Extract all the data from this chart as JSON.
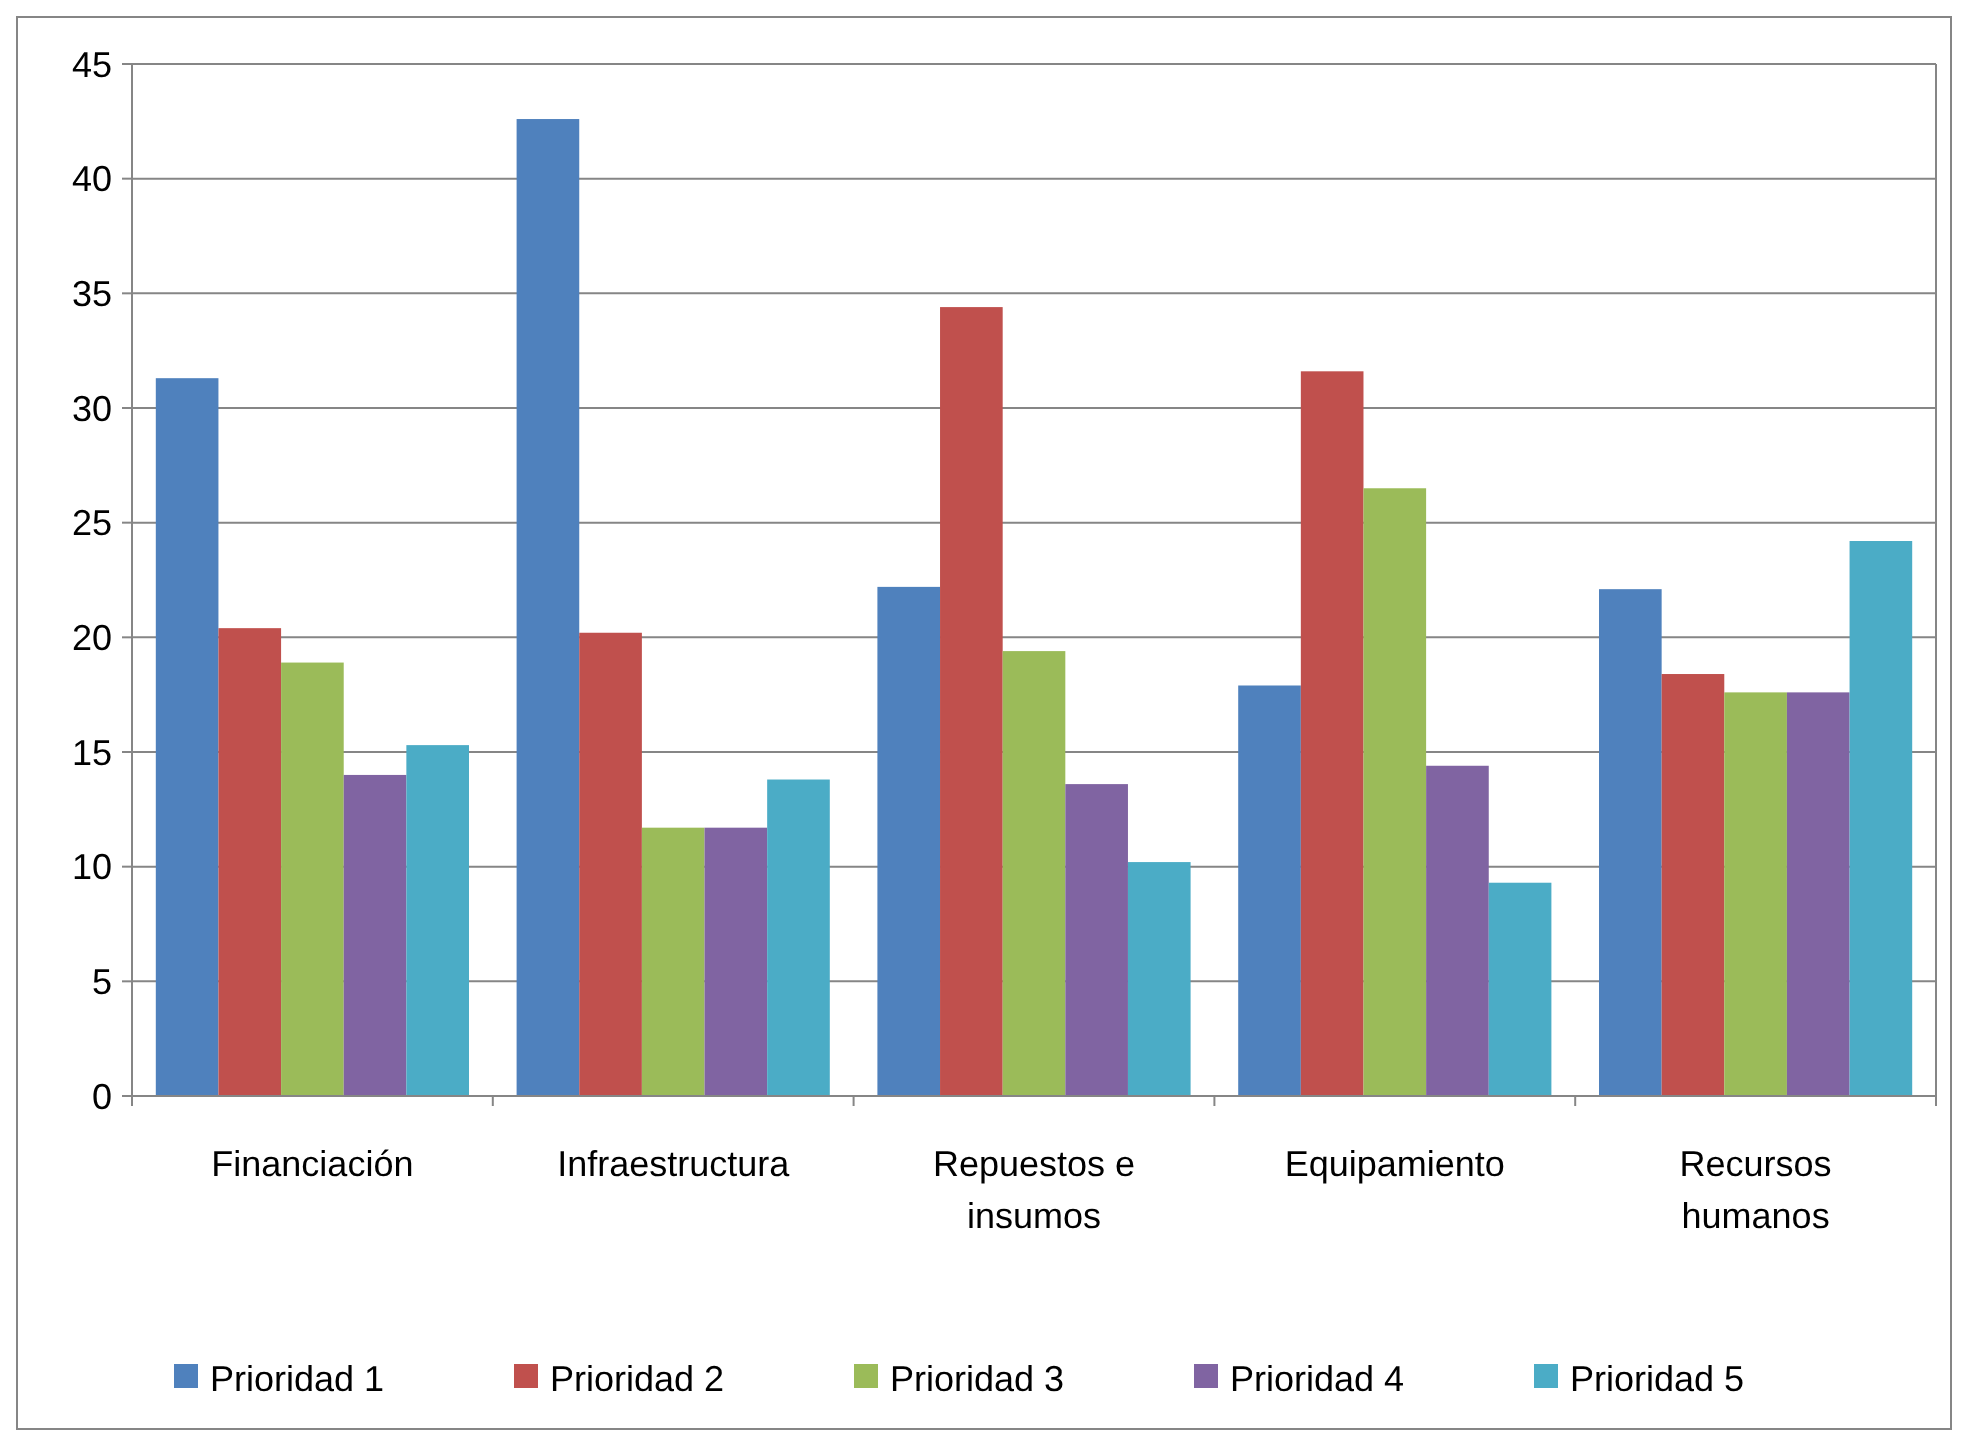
{
  "chart_data": {
    "type": "bar",
    "categories": [
      "Financiación",
      "Infraestructura",
      "Repuestos e insumos",
      "Equipamiento",
      "Recursos humanos"
    ],
    "series": [
      {
        "name": "Prioridad 1",
        "color": "#4f81bd",
        "values": [
          31.3,
          42.6,
          22.2,
          17.9,
          22.1
        ]
      },
      {
        "name": "Prioridad 2",
        "color": "#c0504d",
        "values": [
          20.4,
          20.2,
          34.4,
          31.6,
          18.4
        ]
      },
      {
        "name": "Prioridad 3",
        "color": "#9bbb59",
        "values": [
          18.9,
          11.7,
          19.4,
          26.5,
          17.6
        ]
      },
      {
        "name": "Prioridad 4",
        "color": "#8064a2",
        "values": [
          14.0,
          11.7,
          13.6,
          14.4,
          17.6
        ]
      },
      {
        "name": "Prioridad 5",
        "color": "#4bacc6",
        "values": [
          15.3,
          13.8,
          10.2,
          9.3,
          24.2
        ]
      }
    ],
    "ylim": [
      0,
      45
    ],
    "yticks": [
      0,
      5,
      10,
      15,
      20,
      25,
      30,
      35,
      40,
      45
    ],
    "grid": "y",
    "legend": "bottom"
  }
}
